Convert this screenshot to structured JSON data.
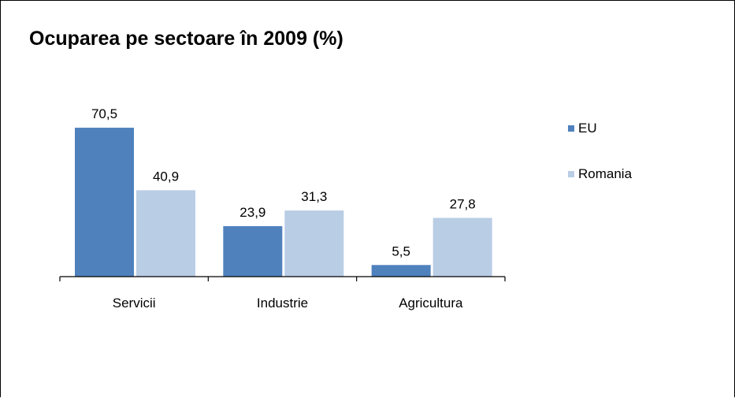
{
  "chart_data": {
    "type": "bar",
    "title": "Ocuparea pe sectoare în 2009 (%)",
    "categories": [
      "Servicii",
      "Industrie",
      "Agricultura"
    ],
    "series": [
      {
        "name": "EU",
        "values": [
          70.5,
          23.9,
          5.5
        ],
        "labels": [
          "70,5",
          "23,9",
          "5,5"
        ],
        "color": "#4f81bd"
      },
      {
        "name": "Romania",
        "values": [
          40.9,
          31.3,
          27.8
        ],
        "labels": [
          "40,9",
          "31,3",
          "27,8"
        ],
        "color": "#b9cde5"
      }
    ],
    "ylim": [
      0,
      75
    ],
    "grid": false,
    "legend": "right"
  }
}
